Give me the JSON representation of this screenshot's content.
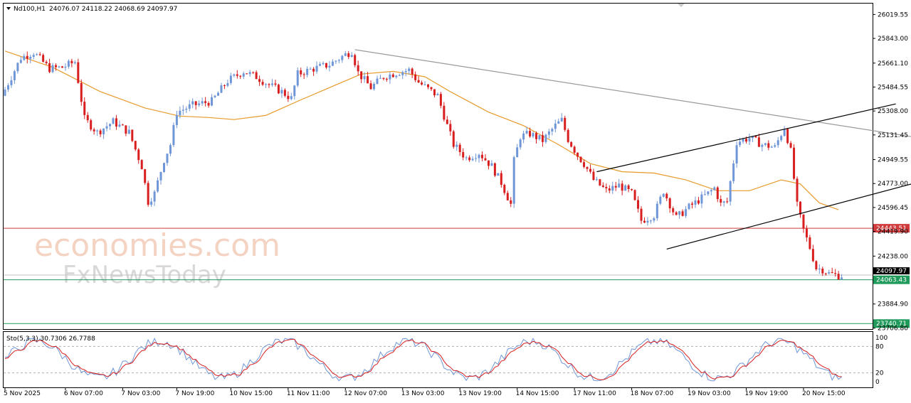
{
  "header": {
    "symbol": "Nd100,H1",
    "ohlc": "24076.07 24118.22 24068.69 24097.97"
  },
  "watermark": {
    "line1": "economies.com",
    "line2": "FxNewsToday"
  },
  "indicator_label": "Sto(5,3,3) 30.7306 26.7788",
  "colors": {
    "bull": "#6f96d6",
    "bear": "#d81e1e",
    "ma": "#e79a2a",
    "resistance": "#d03a3a",
    "support": "#1f9a5a",
    "trendline": "#9a9a9a",
    "stoch_main": "#6f96d6",
    "stoch_signal": "#d81e1e"
  },
  "chart_data": {
    "type": "candlestick",
    "symbol": "Nd100",
    "timeframe": "H1",
    "y_range": [
      23700,
      26100
    ],
    "y_ticks": [
      "26019.55",
      "25843.00",
      "25661.10",
      "25484.55",
      "25308.00",
      "25131.45",
      "24949.55",
      "24773.00",
      "24596.45",
      "24419.90",
      "24238.00",
      "23884.90",
      "23706.80"
    ],
    "y_tick_values": [
      26019.55,
      25843.0,
      25661.1,
      25484.55,
      25308.0,
      25131.45,
      24949.55,
      24773.0,
      24596.45,
      24419.9,
      24238.0,
      23884.9,
      23706.8
    ],
    "x_labels": [
      "5 Nov 2025",
      "6 Nov 07:00",
      "7 Nov 03:00",
      "7 Nov 19:00",
      "10 Nov 15:00",
      "11 Nov 11:00",
      "12 Nov 07:00",
      "13 Nov 03:00",
      "13 Nov 19:00",
      "14 Nov 15:00",
      "17 Nov 11:00",
      "18 Nov 07:00",
      "19 Nov 03:00",
      "19 Nov 19:00",
      "20 Nov 15:00"
    ],
    "x_label_bar_index": [
      0,
      19,
      37,
      54,
      71,
      89,
      107,
      125,
      143,
      161,
      179,
      197,
      215,
      233,
      251
    ],
    "price_path": [
      [
        0,
        25420
      ],
      [
        6,
        25700
      ],
      [
        10,
        25740
      ],
      [
        15,
        25620
      ],
      [
        19,
        25630
      ],
      [
        23,
        25670
      ],
      [
        26,
        25250
      ],
      [
        30,
        25150
      ],
      [
        35,
        25230
      ],
      [
        40,
        25150
      ],
      [
        44,
        24900
      ],
      [
        46,
        24640
      ],
      [
        48,
        24700
      ],
      [
        51,
        24950
      ],
      [
        53,
        25060
      ],
      [
        55,
        25300
      ],
      [
        60,
        25350
      ],
      [
        66,
        25380
      ],
      [
        71,
        25530
      ],
      [
        76,
        25600
      ],
      [
        80,
        25560
      ],
      [
        84,
        25500
      ],
      [
        88,
        25450
      ],
      [
        91,
        25400
      ],
      [
        93,
        25580
      ],
      [
        98,
        25620
      ],
      [
        103,
        25650
      ],
      [
        107,
        25710
      ],
      [
        110,
        25750
      ],
      [
        112,
        25590
      ],
      [
        116,
        25480
      ],
      [
        120,
        25560
      ],
      [
        124,
        25590
      ],
      [
        128,
        25610
      ],
      [
        131,
        25520
      ],
      [
        134,
        25470
      ],
      [
        137,
        25420
      ],
      [
        140,
        25200
      ],
      [
        142,
        25060
      ],
      [
        146,
        24960
      ],
      [
        150,
        25000
      ],
      [
        154,
        24900
      ],
      [
        157,
        24780
      ],
      [
        160,
        24620
      ],
      [
        161,
        24940
      ],
      [
        163,
        25120
      ],
      [
        166,
        25140
      ],
      [
        170,
        25090
      ],
      [
        174,
        25200
      ],
      [
        176,
        25240
      ],
      [
        178,
        25100
      ],
      [
        181,
        24980
      ],
      [
        183,
        24920
      ],
      [
        186,
        24800
      ],
      [
        190,
        24720
      ],
      [
        194,
        24760
      ],
      [
        198,
        24700
      ],
      [
        201,
        24500
      ],
      [
        205,
        24540
      ],
      [
        208,
        24720
      ],
      [
        212,
        24520
      ],
      [
        216,
        24600
      ],
      [
        219,
        24650
      ],
      [
        222,
        24700
      ],
      [
        224,
        24740
      ],
      [
        226,
        24620
      ],
      [
        228,
        24640
      ],
      [
        231,
        25080
      ],
      [
        235,
        25110
      ],
      [
        239,
        25060
      ],
      [
        243,
        25040
      ],
      [
        246,
        25190
      ],
      [
        248,
        25010
      ],
      [
        250,
        24610
      ],
      [
        252,
        24430
      ],
      [
        254,
        24300
      ],
      [
        256,
        24150
      ],
      [
        258,
        24140
      ],
      [
        260,
        24110
      ],
      [
        263,
        24095
      ]
    ],
    "moving_average": [
      [
        0,
        25750
      ],
      [
        15,
        25630
      ],
      [
        30,
        25450
      ],
      [
        44,
        25330
      ],
      [
        55,
        25270
      ],
      [
        64,
        25260
      ],
      [
        72,
        25245
      ],
      [
        82,
        25275
      ],
      [
        93,
        25390
      ],
      [
        105,
        25510
      ],
      [
        112,
        25580
      ],
      [
        122,
        25600
      ],
      [
        132,
        25560
      ],
      [
        140,
        25450
      ],
      [
        152,
        25300
      ],
      [
        163,
        25200
      ],
      [
        174,
        25060
      ],
      [
        184,
        24920
      ],
      [
        194,
        24860
      ],
      [
        204,
        24850
      ],
      [
        214,
        24800
      ],
      [
        224,
        24720
      ],
      [
        234,
        24720
      ],
      [
        244,
        24800
      ],
      [
        250,
        24770
      ],
      [
        256,
        24630
      ],
      [
        262,
        24580
      ]
    ],
    "resistance_level": 24443.51,
    "resistance_label": "24443.51",
    "support_level": 24063.43,
    "support_label": "24063.43",
    "support_level_2": 23740.71,
    "support_label_2": "23740.71",
    "current_price": 24097.97,
    "current_price_label": "24097.97",
    "trendline": {
      "from": [
        110,
        25760
      ],
      "to": [
        320,
        24990
      ]
    },
    "channel_upper": {
      "from": [
        186,
        24860
      ],
      "to": [
        280,
        25360
      ]
    },
    "channel_lower": {
      "from": [
        208,
        24290
      ],
      "to": [
        301,
        24870
      ]
    },
    "stochastic": {
      "label": "Sto(5,3,3) 30.7306 26.7788",
      "k": 30.7306,
      "d": 26.7788,
      "levels": [
        80,
        20
      ],
      "y_ticks": [
        "100",
        "80",
        "20",
        "0"
      ],
      "y_tick_values": [
        100,
        80,
        20,
        0
      ],
      "range": [
        0,
        100
      ]
    },
    "n_bars": 264
  }
}
